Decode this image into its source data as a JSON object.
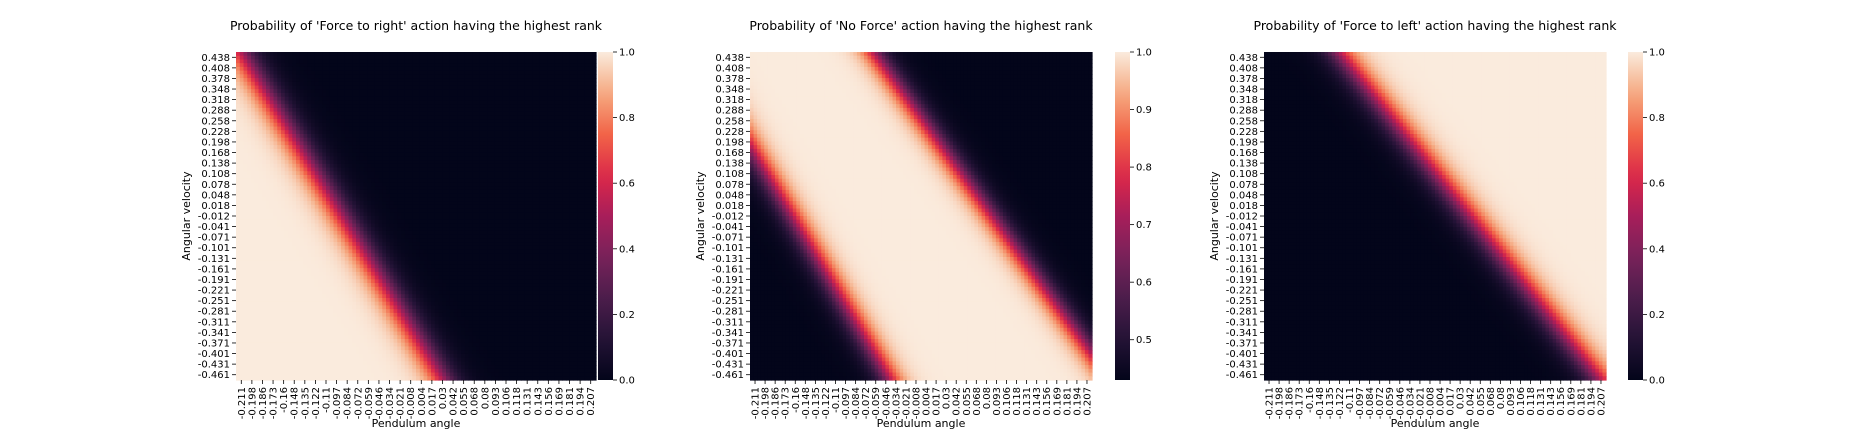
{
  "chart_data": [
    {
      "type": "heatmap",
      "title": "Probability of 'Force to right' action having the highest rank",
      "xlabel": "Pendulum angle",
      "ylabel": "Angular velocity",
      "x_ticks": [
        "-0.211",
        "-0.198",
        "-0.186",
        "-0.173",
        "-0.16",
        "-0.148",
        "-0.135",
        "-0.122",
        "-0.11",
        "-0.097",
        "-0.084",
        "-0.072",
        "-0.059",
        "-0.046",
        "-0.034",
        "-0.021",
        "-0.008",
        "0.004",
        "0.017",
        "0.03",
        "0.042",
        "0.055",
        "0.068",
        "0.08",
        "0.093",
        "0.106",
        "0.118",
        "0.131",
        "0.143",
        "0.156",
        "0.169",
        "0.181",
        "0.194",
        "0.207"
      ],
      "y_ticks": [
        "0.438",
        "0.408",
        "0.378",
        "0.348",
        "0.318",
        "0.288",
        "0.258",
        "0.228",
        "0.198",
        "0.168",
        "0.138",
        "0.108",
        "0.078",
        "0.048",
        "0.018",
        "-0.012",
        "-0.041",
        "-0.071",
        "-0.101",
        "-0.131",
        "-0.161",
        "-0.191",
        "-0.221",
        "-0.251",
        "-0.281",
        "-0.311",
        "-0.341",
        "-0.371",
        "-0.401",
        "-0.431",
        "-0.461"
      ],
      "colorbar": {
        "min": 0.0,
        "max": 1.0,
        "ticks": [
          "0.0",
          "0.2",
          "0.4",
          "0.6",
          "0.8",
          "1.0"
        ]
      },
      "boundary": {
        "angle_at_top": -0.205,
        "angle_at_bottom": 0.03,
        "width_deg": 0.055,
        "direction": "high_left"
      }
    },
    {
      "type": "heatmap",
      "title": "Probability of 'No Force' action having the highest rank",
      "xlabel": "Pendulum angle",
      "ylabel": "Angular velocity",
      "x_ticks": [
        "-0.211",
        "-0.198",
        "-0.186",
        "-0.173",
        "-0.16",
        "-0.148",
        "-0.135",
        "-0.122",
        "-0.11",
        "-0.097",
        "-0.084",
        "-0.072",
        "-0.059",
        "-0.046",
        "-0.034",
        "-0.021",
        "-0.008",
        "0.004",
        "0.017",
        "0.03",
        "0.042",
        "0.055",
        "0.068",
        "0.08",
        "0.093",
        "0.106",
        "0.118",
        "0.131",
        "0.143",
        "0.156",
        "0.169",
        "0.181",
        "0.194",
        "0.207"
      ],
      "y_ticks": [
        "0.438",
        "0.408",
        "0.378",
        "0.348",
        "0.318",
        "0.288",
        "0.258",
        "0.228",
        "0.198",
        "0.168",
        "0.138",
        "0.108",
        "0.078",
        "0.048",
        "0.018",
        "-0.012",
        "-0.041",
        "-0.071",
        "-0.101",
        "-0.131",
        "-0.161",
        "-0.191",
        "-0.221",
        "-0.251",
        "-0.281",
        "-0.311",
        "-0.341",
        "-0.371",
        "-0.401",
        "-0.431",
        "-0.461"
      ],
      "colorbar": {
        "min": 0.43,
        "max": 1.0,
        "ticks": [
          "0.5",
          "0.6",
          "0.7",
          "0.8",
          "0.9",
          "1.0"
        ]
      },
      "boundary": {
        "low_left": {
          "angle_at_top": -0.28,
          "angle_at_bottom": -0.04
        },
        "low_right": {
          "angle_at_top": -0.06,
          "angle_at_bottom": 0.23
        },
        "width_deg": 0.05
      }
    },
    {
      "type": "heatmap",
      "title": "Probability of 'Force to left' action having the highest rank",
      "xlabel": "Pendulum angle",
      "ylabel": "Angular velocity",
      "x_ticks": [
        "-0.211",
        "-0.198",
        "-0.186",
        "-0.173",
        "-0.16",
        "-0.148",
        "-0.135",
        "-0.122",
        "-0.11",
        "-0.097",
        "-0.084",
        "-0.072",
        "-0.059",
        "-0.046",
        "-0.034",
        "-0.021",
        "-0.008",
        "0.004",
        "0.017",
        "0.03",
        "0.042",
        "0.055",
        "0.068",
        "0.08",
        "0.093",
        "0.106",
        "0.118",
        "0.131",
        "0.143",
        "0.156",
        "0.169",
        "0.181",
        "0.194",
        "0.207"
      ],
      "y_ticks": [
        "0.438",
        "0.408",
        "0.378",
        "0.348",
        "0.318",
        "0.288",
        "0.258",
        "0.228",
        "0.198",
        "0.168",
        "0.138",
        "0.108",
        "0.078",
        "0.048",
        "0.018",
        "-0.012",
        "-0.041",
        "-0.071",
        "-0.101",
        "-0.131",
        "-0.161",
        "-0.191",
        "-0.221",
        "-0.251",
        "-0.281",
        "-0.311",
        "-0.341",
        "-0.371",
        "-0.401",
        "-0.431",
        "-0.461"
      ],
      "colorbar": {
        "min": 0.0,
        "max": 1.0,
        "ticks": [
          "0.0",
          "0.2",
          "0.4",
          "0.6",
          "0.8",
          "1.0"
        ]
      },
      "boundary": {
        "angle_at_top": -0.12,
        "angle_at_bottom": 0.2,
        "width_deg": 0.06,
        "direction": "high_right"
      }
    }
  ]
}
